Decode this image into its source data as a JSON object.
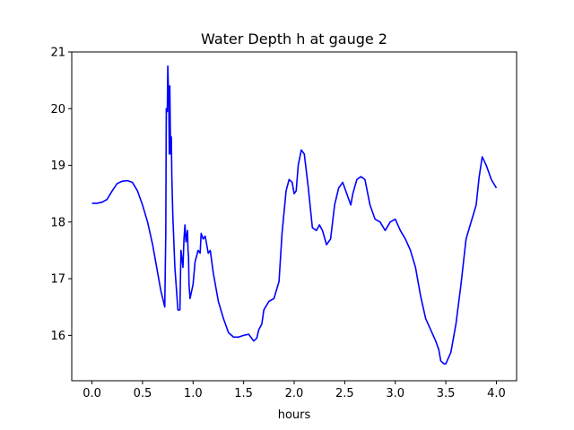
{
  "chart_data": {
    "type": "line",
    "title": "Water Depth h at gauge 2",
    "xlabel": "hours",
    "ylabel": "",
    "xlim": [
      -0.2,
      4.2
    ],
    "ylim": [
      15.2,
      21.0
    ],
    "xticks": [
      0.0,
      0.5,
      1.0,
      1.5,
      2.0,
      2.5,
      3.0,
      3.5,
      4.0
    ],
    "xtick_labels": [
      "0.0",
      "0.5",
      "1.0",
      "1.5",
      "2.0",
      "2.5",
      "3.0",
      "3.5",
      "4.0"
    ],
    "yticks": [
      16,
      17,
      18,
      19,
      20,
      21
    ],
    "ytick_labels": [
      "16",
      "17",
      "18",
      "19",
      "20",
      "21"
    ],
    "grid": false,
    "color": "#0000ff",
    "series": [
      {
        "x": [
          0.0,
          0.05,
          0.1,
          0.15,
          0.2,
          0.25,
          0.3,
          0.35,
          0.4,
          0.45,
          0.5,
          0.55,
          0.6,
          0.64,
          0.68,
          0.72,
          0.73,
          0.735,
          0.745,
          0.75,
          0.76,
          0.765,
          0.77,
          0.775,
          0.78,
          0.785,
          0.79,
          0.8,
          0.82,
          0.85,
          0.87,
          0.88,
          0.9,
          0.91,
          0.92,
          0.93,
          0.945,
          0.95,
          0.955,
          0.96,
          0.97,
          1.0,
          1.02,
          1.05,
          1.07,
          1.08,
          1.1,
          1.12,
          1.15,
          1.17,
          1.2,
          1.25,
          1.3,
          1.35,
          1.4,
          1.45,
          1.5,
          1.55,
          1.6,
          1.63,
          1.65,
          1.68,
          1.7,
          1.75,
          1.8,
          1.85,
          1.88,
          1.92,
          1.95,
          1.98,
          2.0,
          2.02,
          2.04,
          2.07,
          2.1,
          2.14,
          2.18,
          2.22,
          2.25,
          2.28,
          2.32,
          2.36,
          2.4,
          2.44,
          2.48,
          2.52,
          2.56,
          2.58,
          2.62,
          2.66,
          2.7,
          2.75,
          2.8,
          2.85,
          2.9,
          2.95,
          3.0,
          3.05,
          3.1,
          3.15,
          3.2,
          3.25,
          3.3,
          3.35,
          3.4,
          3.43,
          3.45,
          3.48,
          3.5,
          3.55,
          3.6,
          3.65,
          3.7,
          3.75,
          3.8,
          3.83,
          3.86,
          3.9,
          3.95,
          4.0
        ],
        "y": [
          18.33,
          18.33,
          18.35,
          18.4,
          18.55,
          18.68,
          18.72,
          18.73,
          18.7,
          18.55,
          18.3,
          18.0,
          17.6,
          17.2,
          16.8,
          16.5,
          17.8,
          20.0,
          19.95,
          20.75,
          20.1,
          19.2,
          20.4,
          19.6,
          19.2,
          19.5,
          18.8,
          18.1,
          17.2,
          16.45,
          16.45,
          17.5,
          17.2,
          17.7,
          17.95,
          17.65,
          17.85,
          17.5,
          17.4,
          16.9,
          16.65,
          16.9,
          17.3,
          17.5,
          17.45,
          17.8,
          17.7,
          17.75,
          17.45,
          17.5,
          17.1,
          16.6,
          16.3,
          16.05,
          15.97,
          15.97,
          16.0,
          16.02,
          15.9,
          15.95,
          16.1,
          16.2,
          16.45,
          16.6,
          16.65,
          16.95,
          17.8,
          18.55,
          18.75,
          18.7,
          18.5,
          18.55,
          19.0,
          19.27,
          19.2,
          18.6,
          17.9,
          17.85,
          17.95,
          17.85,
          17.6,
          17.7,
          18.3,
          18.6,
          18.7,
          18.5,
          18.3,
          18.5,
          18.75,
          18.8,
          18.75,
          18.3,
          18.05,
          18.0,
          17.85,
          18.0,
          18.05,
          17.85,
          17.7,
          17.5,
          17.2,
          16.7,
          16.3,
          16.1,
          15.9,
          15.75,
          15.55,
          15.5,
          15.5,
          15.7,
          16.2,
          16.9,
          17.7,
          18.0,
          18.3,
          18.8,
          19.15,
          19.0,
          18.75,
          18.6
        ]
      }
    ]
  }
}
